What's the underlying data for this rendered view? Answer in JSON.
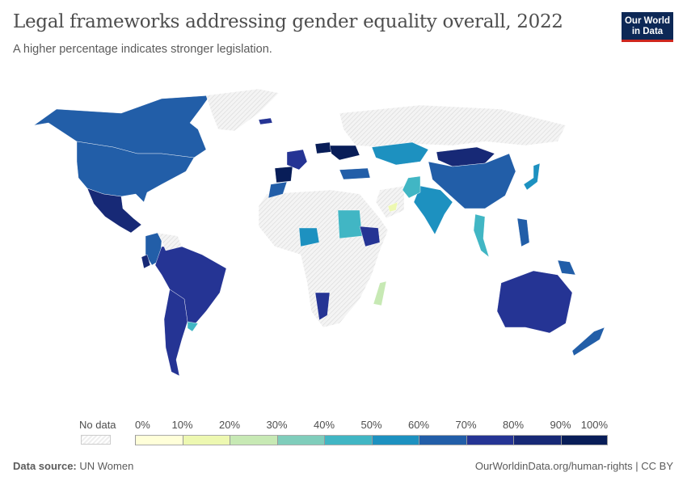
{
  "header": {
    "title": "Legal frameworks addressing gender equality overall, 2022",
    "subtitle": "A higher percentage indicates stronger legislation.",
    "logo_line1": "Our World",
    "logo_line2": "in Data"
  },
  "legend": {
    "no_data_label": "No data",
    "ticks": [
      "0%",
      "10%",
      "20%",
      "30%",
      "40%",
      "50%",
      "60%",
      "70%",
      "80%",
      "90%",
      "100%"
    ],
    "bins": [
      {
        "range": "0-10%",
        "color": "#ffffd9"
      },
      {
        "range": "10-20%",
        "color": "#edf8b1"
      },
      {
        "range": "20-30%",
        "color": "#c7e9b4"
      },
      {
        "range": "30-40%",
        "color": "#7fcdbb"
      },
      {
        "range": "40-50%",
        "color": "#41b6c4"
      },
      {
        "range": "50-60%",
        "color": "#1d91c0"
      },
      {
        "range": "60-70%",
        "color": "#225ea8"
      },
      {
        "range": "70-80%",
        "color": "#253494"
      },
      {
        "range": "80-90%",
        "color": "#172976"
      },
      {
        "range": "90-100%",
        "color": "#081d58"
      }
    ],
    "no_data_color": "#eeeeee"
  },
  "map": {
    "regions": [
      {
        "name": "Canada",
        "bin": 6
      },
      {
        "name": "United States",
        "bin": 6
      },
      {
        "name": "Mexico",
        "bin": 8
      },
      {
        "name": "Greenland",
        "bin": -1
      },
      {
        "name": "Colombia",
        "bin": 6
      },
      {
        "name": "Brazil",
        "bin": 7
      },
      {
        "name": "Argentina",
        "bin": 7
      },
      {
        "name": "Uruguay",
        "bin": 4
      },
      {
        "name": "Ecuador",
        "bin": 8
      },
      {
        "name": "Venezuela",
        "bin": -1
      },
      {
        "name": "Iceland",
        "bin": 7
      },
      {
        "name": "Spain",
        "bin": 9
      },
      {
        "name": "France",
        "bin": 7
      },
      {
        "name": "Poland",
        "bin": 9
      },
      {
        "name": "Ukraine",
        "bin": 9
      },
      {
        "name": "Russia",
        "bin": -1
      },
      {
        "name": "Kazakhstan",
        "bin": 5
      },
      {
        "name": "Mongolia",
        "bin": 8
      },
      {
        "name": "China",
        "bin": 6
      },
      {
        "name": "India",
        "bin": 5
      },
      {
        "name": "Pakistan",
        "bin": 4
      },
      {
        "name": "Japan",
        "bin": 5
      },
      {
        "name": "Sudan",
        "bin": 4
      },
      {
        "name": "Ethiopia",
        "bin": 7
      },
      {
        "name": "Nigeria",
        "bin": 5
      },
      {
        "name": "Madagascar",
        "bin": 2
      },
      {
        "name": "Namibia",
        "bin": 7
      },
      {
        "name": "Australia",
        "bin": 7
      },
      {
        "name": "New Zealand",
        "bin": 6
      },
      {
        "name": "Papua New Guinea",
        "bin": 6
      },
      {
        "name": "Philippines",
        "bin": 6
      },
      {
        "name": "Thailand",
        "bin": 4
      },
      {
        "name": "Morocco",
        "bin": 6
      },
      {
        "name": "Turkey",
        "bin": 6
      },
      {
        "name": "United Arab Emirates",
        "bin": 1
      }
    ]
  },
  "footer": {
    "source_label": "Data source:",
    "source_value": "UN Women",
    "url": "OurWorldinData.org/human-rights | CC BY"
  }
}
